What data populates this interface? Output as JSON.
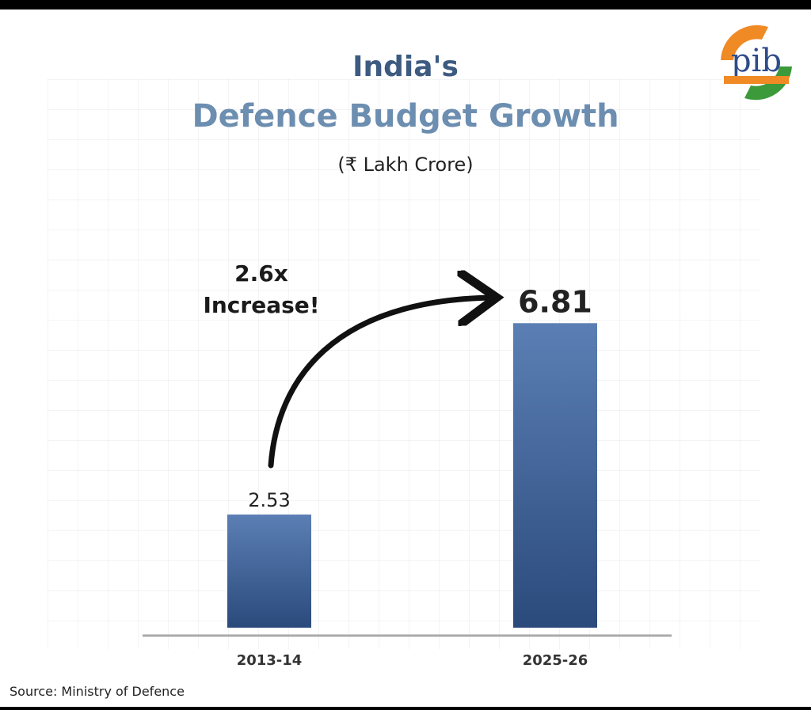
{
  "title": "India's",
  "subtitle": "Defence Budget Growth",
  "unit": "(₹ Lakh Crore)",
  "annotation": {
    "line1": "2.6x",
    "line2": "Increase!"
  },
  "source": "Source: Ministry of Defence",
  "logo_text": "pib",
  "colors": {
    "bar_top": "#5b7fb4",
    "bar_bottom": "#2b4a7c",
    "title": "#3d5a80",
    "subtitle": "#6c8eb0",
    "baseline": "#aaaaaa"
  },
  "chart_data": {
    "type": "bar",
    "title": "India's Defence Budget Growth",
    "ylabel": "(₹ Lakh Crore)",
    "categories": [
      "2013-14",
      "2025-26"
    ],
    "values": [
      2.53,
      6.81
    ],
    "value_labels": [
      "2.53",
      "6.81"
    ],
    "ylim": [
      0,
      7.7
    ],
    "grid": true,
    "legend": "none"
  }
}
